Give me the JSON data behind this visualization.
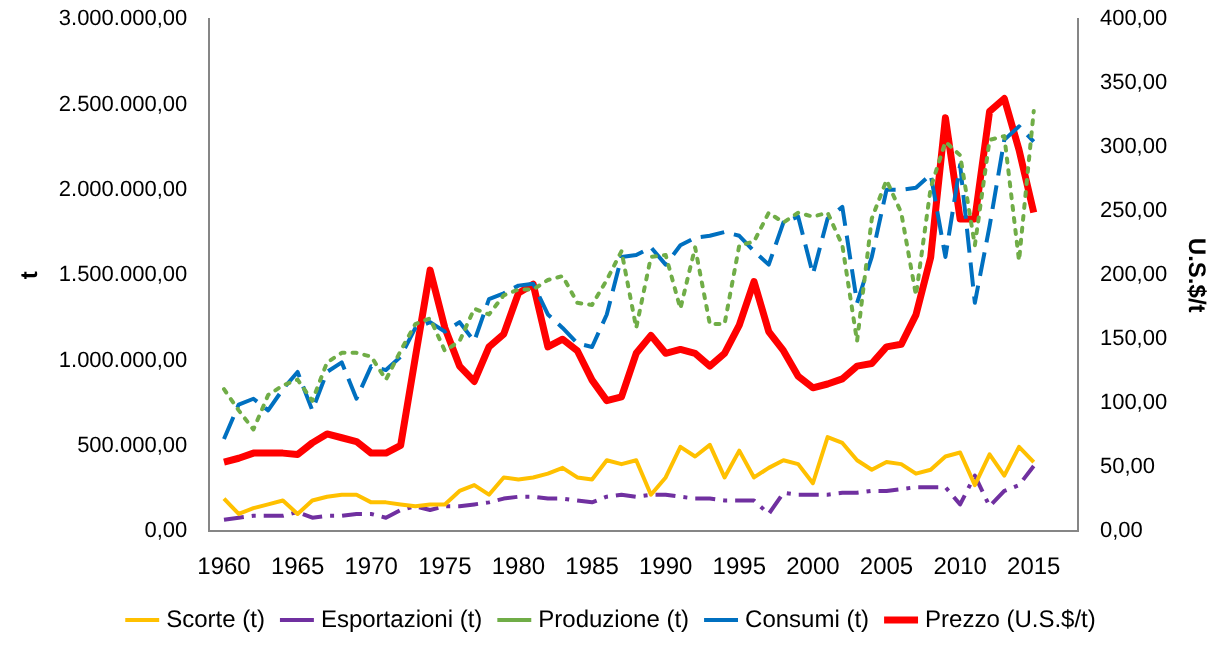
{
  "chart_data": {
    "type": "line",
    "xlabel": null,
    "ylabel": "t",
    "y2label": "U.S.$/t",
    "x": [
      1960,
      1961,
      1962,
      1963,
      1964,
      1965,
      1966,
      1967,
      1968,
      1969,
      1970,
      1971,
      1972,
      1973,
      1974,
      1975,
      1976,
      1977,
      1978,
      1979,
      1980,
      1981,
      1982,
      1983,
      1984,
      1985,
      1986,
      1987,
      1988,
      1989,
      1990,
      1991,
      1992,
      1993,
      1994,
      1995,
      1996,
      1997,
      1998,
      1999,
      2000,
      2001,
      2002,
      2003,
      2004,
      2005,
      2006,
      2007,
      2008,
      2009,
      2010,
      2011,
      2012,
      2013,
      2014,
      2015
    ],
    "series": [
      {
        "name": "Scorte (t)",
        "color": "#ffc000",
        "line_style": "solid",
        "values": [
          191000,
          101000,
          135000,
          157000,
          180000,
          101000,
          180000,
          202000,
          214000,
          214000,
          169000,
          169000,
          157000,
          146000,
          157000,
          157000,
          236000,
          270000,
          214000,
          315000,
          303000,
          315000,
          337000,
          371000,
          315000,
          303000,
          416000,
          393000,
          416000,
          214000,
          315000,
          494000,
          438000,
          506000,
          315000,
          472000,
          315000,
          371000,
          416000,
          393000,
          281000,
          551000,
          517000,
          416000,
          360000,
          405000,
          393000,
          337000,
          360000,
          438000,
          461000,
          270000,
          450000,
          326000,
          494000,
          405000
        ]
      },
      {
        "name": "Esportazioni (t)",
        "color": "#7030a0",
        "line_style": "dashdot",
        "values": [
          67000,
          79000,
          90000,
          90000,
          90000,
          112000,
          79000,
          90000,
          90000,
          101000,
          101000,
          79000,
          124000,
          146000,
          124000,
          146000,
          146000,
          157000,
          169000,
          191000,
          202000,
          202000,
          191000,
          191000,
          180000,
          169000,
          202000,
          214000,
          202000,
          214000,
          214000,
          202000,
          191000,
          191000,
          180000,
          180000,
          180000,
          101000,
          225000,
          214000,
          214000,
          214000,
          225000,
          225000,
          236000,
          236000,
          247000,
          258000,
          258000,
          258000,
          157000,
          326000,
          146000,
          236000,
          270000,
          382000
        ]
      },
      {
        "name": "Produzione (t)",
        "color": "#70ad47",
        "line_style": "dotted",
        "values": [
          832000,
          708000,
          596000,
          798000,
          854000,
          888000,
          764000,
          989000,
          1045000,
          1045000,
          1023000,
          888000,
          1057000,
          1214000,
          1247000,
          1057000,
          1113000,
          1304000,
          1270000,
          1382000,
          1416000,
          1416000,
          1472000,
          1495000,
          1338000,
          1326000,
          1472000,
          1641000,
          1191000,
          1607000,
          1618000,
          1304000,
          1663000,
          1214000,
          1214000,
          1675000,
          1697000,
          1866000,
          1809000,
          1866000,
          1843000,
          1866000,
          1675000,
          1113000,
          1832000,
          2057000,
          1866000,
          1382000,
          2012000,
          2282000,
          2203000,
          1675000,
          2293000,
          2315000,
          1585000,
          2462000
        ]
      },
      {
        "name": "Consumi (t)",
        "color": "#0070c0",
        "line_style": "dashed",
        "values": [
          540000,
          742000,
          776000,
          708000,
          832000,
          933000,
          708000,
          933000,
          989000,
          776000,
          967000,
          944000,
          1023000,
          1191000,
          1225000,
          1169000,
          1225000,
          1113000,
          1360000,
          1394000,
          1439000,
          1450000,
          1270000,
          1191000,
          1101000,
          1079000,
          1270000,
          1607000,
          1618000,
          1663000,
          1562000,
          1675000,
          1720000,
          1731000,
          1753000,
          1731000,
          1641000,
          1562000,
          1809000,
          1843000,
          1506000,
          1832000,
          1900000,
          1338000,
          1607000,
          2000000,
          2000000,
          2012000,
          2091000,
          1607000,
          2147000,
          1338000,
          1787000,
          2293000,
          2372000,
          2282000
        ]
      },
      {
        "name": "Prezzo (U.S.$/t)",
        "color": "#ff0000",
        "line_style": "solid",
        "axis": "y2",
        "values": [
          54,
          57,
          61,
          61,
          61,
          60,
          69,
          76,
          73,
          70,
          61,
          61,
          67,
          136,
          204,
          159,
          129,
          117,
          144,
          154,
          186,
          193,
          144,
          150,
          141,
          118,
          102,
          105,
          139,
          153,
          139,
          142,
          139,
          129,
          139,
          161,
          195,
          156,
          141,
          121,
          112,
          115,
          119,
          129,
          131,
          144,
          146,
          169,
          214,
          323,
          244,
          244,
          328,
          338,
          298,
          249
        ]
      }
    ],
    "xlim": [
      1959,
      2018
    ],
    "xticks": [
      1960,
      1965,
      1970,
      1975,
      1980,
      1985,
      1990,
      1995,
      2000,
      2005,
      2010,
      2015
    ],
    "ylim": [
      0,
      3000000
    ],
    "yticks": [
      {
        "value": 0,
        "label": "0,00"
      },
      {
        "value": 500000,
        "label": "500.000,00"
      },
      {
        "value": 1000000,
        "label": "1.000.000,00"
      },
      {
        "value": 1500000,
        "label": "1.500.000,00"
      },
      {
        "value": 2000000,
        "label": "2.000.000,00"
      },
      {
        "value": 2500000,
        "label": "2.500.000,00"
      },
      {
        "value": 3000000,
        "label": "3.000.000,00"
      }
    ],
    "y2lim": [
      0,
      400
    ],
    "y2ticks": [
      {
        "value": 0,
        "label": "0,00"
      },
      {
        "value": 50,
        "label": "50,00"
      },
      {
        "value": 100,
        "label": "100,00"
      },
      {
        "value": 150,
        "label": "150,00"
      },
      {
        "value": 200,
        "label": "200,00"
      },
      {
        "value": 250,
        "label": "250,00"
      },
      {
        "value": 300,
        "label": "300,00"
      },
      {
        "value": 350,
        "label": "350,00"
      },
      {
        "value": 400,
        "label": "400,00"
      }
    ],
    "grid": false,
    "legend": "bottom",
    "marker": "none"
  }
}
